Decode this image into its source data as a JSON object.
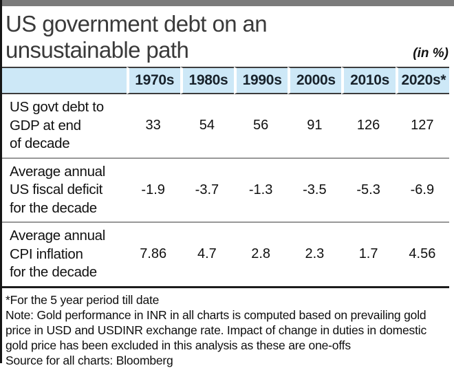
{
  "title": "US government debt on an\nunsustainable path",
  "unit_label": "(in %)",
  "table": {
    "header": [
      "1970s",
      "1980s",
      "1990s",
      "2000s",
      "2010s",
      "2020s*"
    ],
    "rows": [
      {
        "label": "US govt debt to\nGDP at end\nof decade",
        "values": [
          "33",
          "54",
          "56",
          "91",
          "126",
          "127"
        ]
      },
      {
        "label": "Average annual\nUS fiscal deficit\nfor the decade",
        "values": [
          "-1.9",
          "-3.7",
          "-1.3",
          "-3.5",
          "-5.3",
          "-6.9"
        ]
      },
      {
        "label": "Average annual\nCPI inflation\nfor the decade",
        "values": [
          "7.86",
          "4.7",
          "2.8",
          "2.3",
          "1.7",
          "4.56"
        ]
      }
    ]
  },
  "footnotes": {
    "asterisk": "*For the 5 year period till date",
    "note": "Note: Gold performance in INR in all charts is computed based on prevailing gold price in USD and USDINR exchange rate. Impact of change in duties in domestic gold price has been excluded in this analysis as these are one-offs",
    "source": "Source for all charts: Bloomberg"
  },
  "colors": {
    "header_bg": "#cde8f7",
    "top_bar": "#7b7b7b",
    "divider_gray": "#989898",
    "border_dark": "#2e2e2e",
    "left_edge": "#161616",
    "text": "#141414"
  },
  "chart_data": {
    "type": "table",
    "title": "US government debt on an unsustainable path",
    "unit": "in %",
    "categories": [
      "1970s",
      "1980s",
      "1990s",
      "2000s",
      "2010s",
      "2020s*"
    ],
    "series": [
      {
        "name": "US govt debt to GDP at end of decade",
        "values": [
          33,
          54,
          56,
          91,
          126,
          127
        ]
      },
      {
        "name": "Average annual US fiscal deficit for the decade",
        "values": [
          -1.9,
          -3.7,
          -1.3,
          -3.5,
          -5.3,
          -6.9
        ]
      },
      {
        "name": "Average annual CPI inflation for the decade",
        "values": [
          7.86,
          4.7,
          2.8,
          2.3,
          1.7,
          4.56
        ]
      }
    ],
    "footnote": "*For the 5 year period till date",
    "source": "Bloomberg"
  }
}
